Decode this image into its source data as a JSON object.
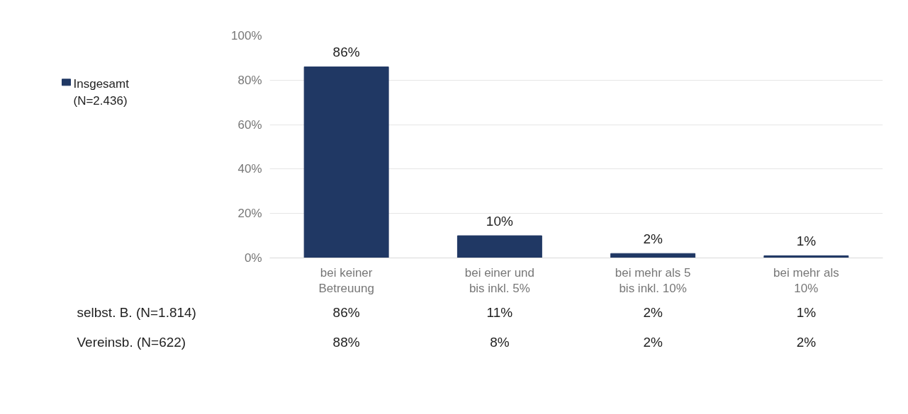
{
  "chart_data": {
    "type": "bar",
    "categories": [
      "bei keiner Betreuung",
      "bei einer und bis inkl. 5%",
      "bei mehr als 5 bis inkl. 10%",
      "bei mehr als 10%"
    ],
    "series": [
      {
        "name": "Insgesamt (N=2.436)",
        "color": "#203864",
        "values": [
          86,
          10,
          2,
          1
        ],
        "value_labels": [
          "86%",
          "10%",
          "2%",
          "1%"
        ]
      }
    ],
    "ylim": [
      0,
      100
    ],
    "yticks": [
      {
        "value": 0,
        "label": "0%"
      },
      {
        "value": 20,
        "label": "20%"
      },
      {
        "value": 40,
        "label": "40%"
      },
      {
        "value": 60,
        "label": "60%"
      },
      {
        "value": 80,
        "label": "80%"
      },
      {
        "value": 100,
        "label": "100%"
      }
    ],
    "data_labels": true,
    "grid": "y",
    "legend": "top left",
    "annotations": [
      "selbst. B. (N=1.814)",
      "86%",
      "11%",
      "2%",
      "1%",
      "Vereinsb. (N=622)",
      "88%",
      "8%",
      "2%",
      "2%"
    ]
  }
}
